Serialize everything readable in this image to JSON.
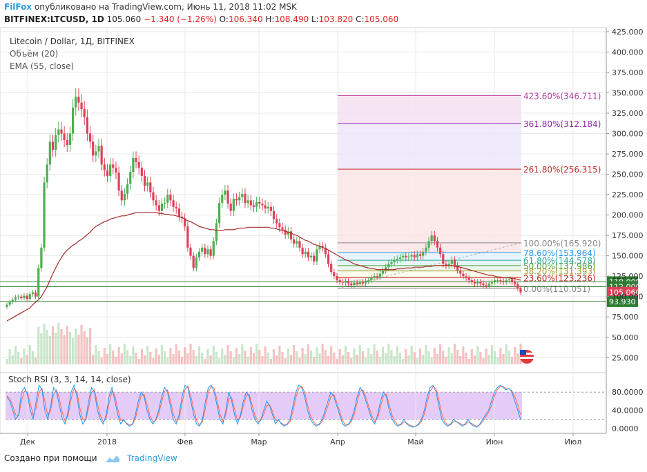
{
  "header": {
    "author": "FilFox",
    "published": "опубликовано на TradingView.com, Июнь 11, 2018 11:02 MSK",
    "symbol": "BITFINEX:LTCUSD, 1D",
    "last": "105.060",
    "change": "−1.340 (−1.26%)",
    "o_label": "O:",
    "o": "106.340",
    "h_label": "H:",
    "h": "108.490",
    "l_label": "L:",
    "l": "103.820",
    "c_label": "C:",
    "c": "105.060"
  },
  "legend": {
    "title": "Litecoin / Dollar, 1Д, BITFINEX",
    "volume": "Объём (20)",
    "ema": "EMA (55, close)",
    "stoch": "Stoch RSI (3, 3, 14, 14, close)"
  },
  "footer": {
    "created": "Создано при помощи",
    "brand": "TradingView"
  },
  "colors": {
    "up": "#4caf50",
    "down": "#e0405a",
    "ema": "#a52a2a",
    "grid": "#e8e8e8",
    "stoch_bg": "#e2c6f7",
    "k": "#2196f3",
    "d": "#f46a55"
  },
  "chart_data": {
    "type": "candlestick",
    "x_ticks": [
      "Дек",
      "2018",
      "Фев",
      "Мар",
      "Апр",
      "Май",
      "Июн",
      "Июл"
    ],
    "y_ticks": [
      "425.000",
      "400.000",
      "375.000",
      "350.000",
      "325.000",
      "300.000",
      "275.000",
      "250.000",
      "225.000",
      "200.000",
      "175.000",
      "150.000",
      "125.000",
      "100.000",
      "75.000",
      "50.000",
      "25.000"
    ],
    "stoch_ticks": [
      "80.0000",
      "40.0000",
      "0.0000"
    ],
    "price_labels": [
      {
        "value": 118.0,
        "text": "118.000",
        "color": "#2e7d32"
      },
      {
        "value": 112.0,
        "text": "112.000",
        "color": "#2e7d32"
      },
      {
        "value": 105.06,
        "text": "105.060",
        "color": "#e0405a"
      },
      {
        "value": 93.93,
        "text": "93.930",
        "color": "#2e7d32"
      }
    ],
    "horizontal_lines": [
      118.0,
      112.0,
      93.93
    ],
    "fib_levels": [
      {
        "level": "423.60%",
        "value": 346.711,
        "text": "423.60%(346.711)",
        "color": "#c040a0"
      },
      {
        "level": "361.80%",
        "value": 312.184,
        "text": "361.80%(312.184)",
        "color": "#8e24aa"
      },
      {
        "level": "261.80%",
        "value": 256.315,
        "text": "261.80%(256.315)",
        "color": "#c62828"
      },
      {
        "level": "100.00%",
        "value": 165.92,
        "text": "100.00%(165.920)",
        "color": "#888888"
      },
      {
        "level": "78.60%",
        "value": 153.964,
        "text": "78.60%(153.964)",
        "color": "#2196f3"
      },
      {
        "level": "61.80%",
        "value": 144.578,
        "text": "61.80%(144.578)",
        "color": "#26a69a"
      },
      {
        "level": "50.00%",
        "value": 137.986,
        "text": "50.00%(137.986)",
        "color": "#43a047"
      },
      {
        "level": "38.20%",
        "value": 131.393,
        "text": "38.20%(131.393)",
        "color": "#9e9d24"
      },
      {
        "level": "23.60%",
        "value": 123.236,
        "text": "23.60%(123.236)",
        "color": "#c62828"
      },
      {
        "level": "0.00%",
        "value": 110.051,
        "text": "0.00%(110.051)",
        "color": "#888888"
      }
    ],
    "closes": [
      90,
      93,
      96,
      99,
      100,
      98,
      101,
      97,
      103,
      105,
      100,
      135,
      160,
      240,
      262,
      290,
      280,
      298,
      305,
      300,
      292,
      286,
      300,
      332,
      345,
      338,
      330,
      320,
      300,
      290,
      273,
      278,
      285,
      262,
      255,
      248,
      262,
      258,
      252,
      230,
      218,
      226,
      238,
      253,
      270,
      265,
      258,
      248,
      236,
      240,
      228,
      218,
      212,
      205,
      214,
      215,
      225,
      218,
      210,
      208,
      198,
      196,
      186,
      160,
      150,
      135,
      148,
      155,
      160,
      152,
      158,
      150,
      168,
      190,
      215,
      225,
      230,
      214,
      205,
      220,
      218,
      222,
      226,
      215,
      218,
      212,
      210,
      216,
      214,
      212,
      208,
      210,
      205,
      195,
      190,
      185,
      182,
      176,
      180,
      170,
      165,
      168,
      160,
      152,
      155,
      148,
      150,
      143,
      158,
      162,
      160,
      152,
      140,
      130,
      125,
      120,
      118,
      117,
      119,
      116,
      114,
      117,
      115,
      118,
      116,
      119,
      120,
      123,
      125,
      124,
      128,
      132,
      136,
      140,
      142,
      145,
      146,
      148,
      150,
      148,
      149,
      151,
      148,
      152,
      150,
      155,
      160,
      168,
      175,
      168,
      160,
      152,
      140,
      138,
      140,
      145,
      138,
      132,
      128,
      125,
      123,
      120,
      118,
      116,
      118,
      116,
      114,
      113,
      116,
      118,
      120,
      120,
      119,
      118,
      120,
      121,
      118,
      115,
      110,
      105
    ],
    "ema": [
      70,
      72,
      74,
      76,
      78,
      80,
      82,
      84,
      86,
      90,
      93,
      96,
      100,
      106,
      112,
      120,
      128,
      135,
      142,
      148,
      153,
      157,
      160,
      163,
      165,
      168,
      170,
      173,
      176,
      179,
      183,
      186,
      188,
      190,
      192,
      193,
      195,
      196,
      197,
      198,
      199,
      199,
      200,
      201,
      202,
      203,
      203,
      203,
      203,
      203,
      203,
      203,
      203,
      202,
      202,
      201,
      201,
      200,
      200,
      199,
      198,
      197,
      195,
      193,
      192,
      190,
      188,
      186,
      185,
      184,
      183,
      182,
      182,
      181,
      181,
      181,
      182,
      182,
      182,
      182,
      183,
      184,
      184,
      184,
      185,
      185,
      185,
      185,
      185,
      185,
      185,
      185,
      184,
      184,
      183,
      182,
      181,
      180,
      179,
      178,
      176,
      175,
      173,
      171,
      169,
      168,
      166,
      164,
      163,
      162,
      160,
      159,
      157,
      155,
      153,
      151,
      149,
      147,
      145,
      144,
      142,
      140,
      139,
      138,
      137,
      136,
      135,
      134,
      134,
      133,
      133,
      133,
      133,
      133,
      133,
      133,
      134,
      134,
      134,
      135,
      135,
      135,
      136,
      136,
      136,
      136,
      137,
      137,
      137,
      138,
      138,
      138,
      138,
      138,
      138,
      138,
      137,
      137,
      136,
      135,
      134,
      133,
      132,
      131,
      130,
      129,
      128,
      127,
      126,
      126,
      125,
      124,
      124,
      123,
      123,
      123,
      122,
      122,
      121,
      120
    ],
    "stoch_k": [
      70,
      60,
      40,
      20,
      30,
      80,
      90,
      75,
      40,
      20,
      60,
      95,
      85,
      40,
      20,
      50,
      90,
      80,
      50,
      20,
      10,
      40,
      80,
      95,
      70,
      30,
      10,
      20,
      60,
      90,
      80,
      40,
      20,
      10,
      30,
      70,
      90,
      60,
      30,
      10,
      20,
      10,
      5,
      10,
      30,
      60,
      80,
      70,
      40,
      20,
      10,
      20,
      40,
      70,
      90,
      80,
      50,
      20,
      10,
      30,
      70,
      95,
      90,
      60,
      30,
      10,
      5,
      20,
      60,
      90,
      95,
      80,
      50,
      20,
      10,
      40,
      80,
      60,
      30,
      10,
      30,
      60,
      80,
      70,
      40,
      20,
      10,
      20,
      40,
      60,
      50,
      30,
      10,
      20,
      10,
      5,
      10,
      20,
      50,
      80,
      95,
      90,
      70,
      40,
      20,
      10,
      5,
      10,
      20,
      40,
      60,
      80,
      70,
      50,
      30,
      10,
      5,
      10,
      20,
      40,
      70,
      90,
      80,
      60,
      40,
      20,
      10,
      30,
      60,
      80,
      70,
      40,
      20,
      10,
      5,
      10,
      20,
      10,
      5,
      3,
      5,
      10,
      20,
      40,
      70,
      90,
      95,
      80,
      50,
      20,
      10,
      5,
      10,
      20,
      15,
      10,
      5,
      10,
      20,
      10,
      5,
      3,
      10,
      20,
      30,
      40,
      60,
      80,
      90,
      95,
      90,
      85,
      88,
      80,
      60,
      40,
      20
    ],
    "stoch_d": [
      72,
      65,
      50,
      30,
      28,
      60,
      82,
      80,
      55,
      30,
      45,
      80,
      88,
      60,
      30,
      40,
      75,
      85,
      65,
      35,
      15,
      30,
      65,
      88,
      80,
      45,
      20,
      18,
      45,
      80,
      85,
      55,
      28,
      15,
      22,
      55,
      82,
      72,
      42,
      18,
      18,
      12,
      8,
      8,
      22,
      48,
      72,
      75,
      52,
      28,
      15,
      18,
      32,
      58,
      82,
      85,
      62,
      32,
      15,
      22,
      55,
      85,
      93,
      72,
      42,
      18,
      8,
      15,
      45,
      80,
      93,
      88,
      62,
      32,
      15,
      30,
      65,
      68,
      42,
      18,
      25,
      50,
      72,
      75,
      52,
      28,
      15,
      18,
      32,
      50,
      52,
      38,
      18,
      18,
      12,
      8,
      8,
      15,
      38,
      68,
      88,
      93,
      80,
      52,
      28,
      15,
      8,
      8,
      15,
      32,
      50,
      70,
      75,
      58,
      38,
      18,
      8,
      8,
      15,
      32,
      58,
      82,
      85,
      68,
      48,
      28,
      15,
      22,
      48,
      72,
      75,
      52,
      28,
      15,
      8,
      8,
      15,
      12,
      8,
      5,
      5,
      8,
      15,
      32,
      58,
      82,
      92,
      88,
      62,
      32,
      15,
      8,
      8,
      15,
      15,
      12,
      8,
      8,
      15,
      12,
      8,
      5,
      8,
      15,
      25,
      35,
      50,
      70,
      85,
      92,
      92,
      88,
      87,
      83,
      70,
      52,
      30
    ]
  }
}
